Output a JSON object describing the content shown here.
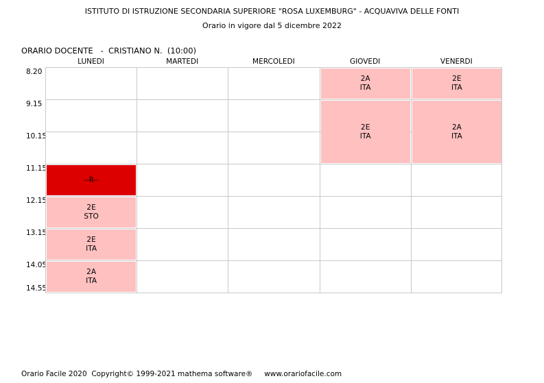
{
  "header": {
    "school": "ISTITUTO DI ISTRUZIONE SECONDARIA SUPERIORE \"ROSA LUXEMBURG\" - ACQUAVIVA DELLE FONTI",
    "validity": "Orario in vigore dal 5 dicembre 2022"
  },
  "docente": "ORARIO DOCENTE   -  CRISTIANO N.  (10:00)",
  "days": [
    "LUNEDI",
    "MARTEDI",
    "MERCOLEDI",
    "GIOVEDI",
    "VENERDI"
  ],
  "times": [
    "8.20",
    "9.15",
    "10.15",
    "11.15",
    "12.15",
    "13.15",
    "14.05",
    "14.55"
  ],
  "lessons": [
    {
      "day": 0,
      "start": 3,
      "span": 1,
      "line1": "--R--",
      "line2": "",
      "kind": "r"
    },
    {
      "day": 0,
      "start": 4,
      "span": 1,
      "line1": "2E",
      "line2": "STO",
      "kind": "class"
    },
    {
      "day": 0,
      "start": 5,
      "span": 1,
      "line1": "2E",
      "line2": "ITA",
      "kind": "class"
    },
    {
      "day": 0,
      "start": 6,
      "span": 1,
      "line1": "2A",
      "line2": "ITA",
      "kind": "class"
    },
    {
      "day": 3,
      "start": 0,
      "span": 1,
      "line1": "2A",
      "line2": "ITA",
      "kind": "class"
    },
    {
      "day": 3,
      "start": 1,
      "span": 2,
      "line1": "2E",
      "line2": "ITA",
      "kind": "class"
    },
    {
      "day": 4,
      "start": 0,
      "span": 1,
      "line1": "2E",
      "line2": "ITA",
      "kind": "class"
    },
    {
      "day": 4,
      "start": 1,
      "span": 2,
      "line1": "2A",
      "line2": "ITA",
      "kind": "class"
    }
  ],
  "colors": {
    "class": "#ffc0c0",
    "r": "#dd0000",
    "grid": "#c8c8c8"
  },
  "footer": "Orario Facile 2020  Copyright© 1999-2021 mathema software®     www.orariofacile.com"
}
